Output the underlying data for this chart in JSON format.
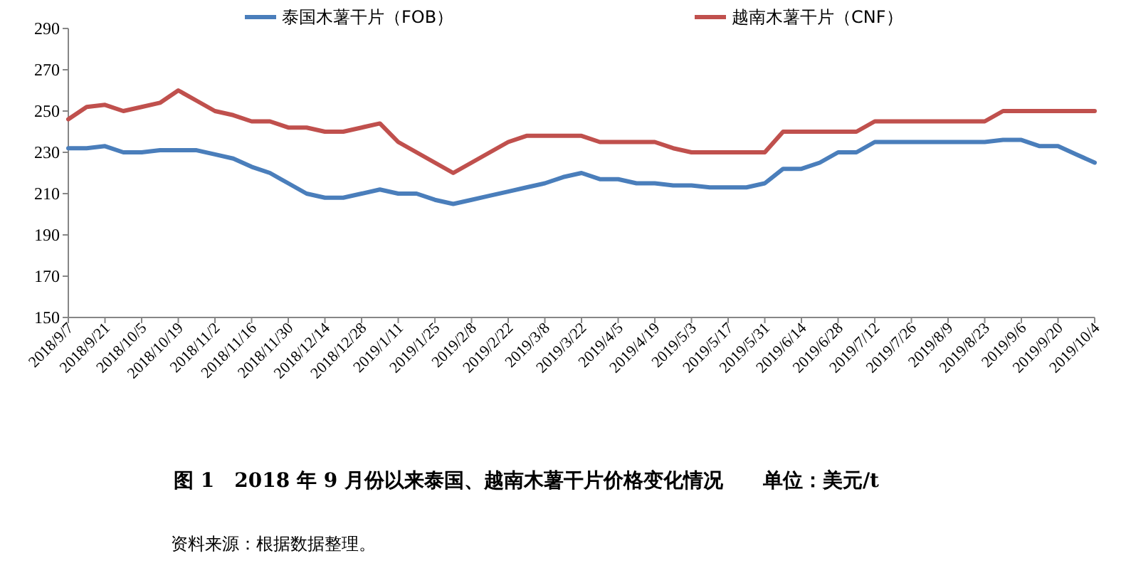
{
  "chart_data": {
    "type": "line",
    "title": "图 1　2018 年 9 月份以来泰国、越南木薯干片价格变化情况　　单位：美元/t",
    "annotations": [
      "资料来源：根据数据整理。"
    ],
    "categories": [
      "2018/9/7",
      null,
      "2018/9/21",
      null,
      "2018/10/5",
      null,
      "2018/10/19",
      null,
      "2018/11/2",
      null,
      "2018/11/16",
      null,
      "2018/11/30",
      null,
      "2018/12/14",
      null,
      "2018/12/28",
      null,
      "2019/1/11",
      null,
      "2019/1/25",
      null,
      "2019/2/8",
      null,
      "2019/2/22",
      null,
      "2019/3/8",
      null,
      "2019/3/22",
      null,
      "2019/4/5",
      null,
      "2019/4/19",
      null,
      "2019/5/3",
      null,
      "2019/5/17",
      null,
      "2019/5/31",
      null,
      "2019/6/14",
      null,
      "2019/6/28",
      null,
      "2019/7/12",
      null,
      "2019/7/26",
      null,
      "2019/8/9",
      null,
      "2019/8/23",
      null,
      "2019/9/6",
      null,
      "2019/9/20",
      null,
      "2019/10/4"
    ],
    "series": [
      {
        "name": "泰国木薯干片（FOB）",
        "color": "#4a7ebb",
        "values": [
          232,
          232,
          233,
          230,
          230,
          231,
          231,
          231,
          229,
          227,
          223,
          220,
          215,
          210,
          208,
          208,
          210,
          212,
          210,
          210,
          207,
          205,
          207,
          209,
          211,
          213,
          215,
          218,
          220,
          217,
          217,
          215,
          215,
          214,
          214,
          213,
          213,
          213,
          215,
          222,
          222,
          225,
          230,
          230,
          235,
          235,
          235,
          235,
          235,
          235,
          235,
          236,
          236,
          233,
          233,
          229,
          225
        ]
      },
      {
        "name": "越南木薯干片（CNF）",
        "color": "#c0504d",
        "values": [
          246,
          252,
          253,
          250,
          252,
          254,
          260,
          255,
          250,
          248,
          245,
          245,
          242,
          242,
          240,
          240,
          242,
          244,
          235,
          230,
          225,
          220,
          225,
          230,
          235,
          238,
          238,
          238,
          238,
          235,
          235,
          235,
          235,
          232,
          230,
          230,
          230,
          230,
          230,
          240,
          240,
          240,
          240,
          240,
          245,
          245,
          245,
          245,
          245,
          245,
          245,
          250,
          250,
          250,
          250,
          250,
          250
        ]
      }
    ],
    "ylim": [
      150,
      290
    ],
    "yticks": [
      150,
      170,
      190,
      210,
      230,
      250,
      270,
      290
    ],
    "legend": "top",
    "grid": false,
    "marker": "none",
    "line_style": "solid"
  }
}
